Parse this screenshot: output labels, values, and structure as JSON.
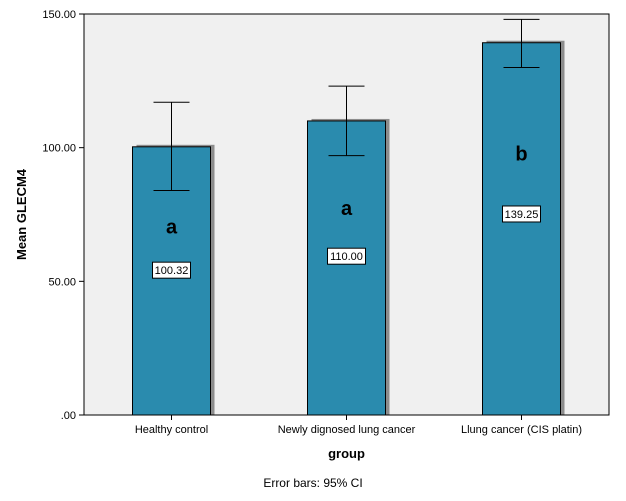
{
  "chart_data": {
    "type": "bar",
    "categories": [
      "Healthy control",
      "Newly dignosed lung cancer",
      "Llung cancer (CIS platin)"
    ],
    "values": [
      100.32,
      110.0,
      139.25
    ],
    "value_labels": [
      "100.32",
      "110.00",
      "139.25"
    ],
    "ci_lower": [
      84,
      97,
      130
    ],
    "ci_upper": [
      117,
      123,
      148
    ],
    "group_letters": [
      "a",
      "a",
      "b"
    ],
    "xlabel": "group",
    "ylabel": "Mean GLECM4",
    "ylim": [
      0,
      150
    ],
    "yticks": [
      0,
      50,
      100,
      150
    ],
    "ytick_labels": [
      ".00",
      "50.00",
      "100.00",
      "150.00"
    ],
    "grid": false,
    "footnote": "Error bars: 95% CI"
  },
  "colors": {
    "bar_fill": "#2A8BAE",
    "bar_shadow": "#8C8C8C",
    "plot_background": "#F0F0F0"
  }
}
